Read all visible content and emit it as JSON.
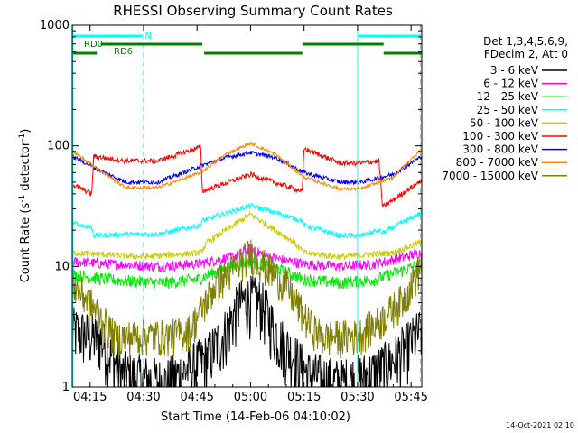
{
  "chart_data": {
    "type": "line",
    "title": "RHESSI Observing Summary Count Rates",
    "xlabel": "Start Time (14-Feb-06 04:10:02)",
    "ylabel_main": "Count Rate (s",
    "ylabel_sup1": "-1",
    "ylabel_mid": " detector",
    "ylabel_sup2": "-1",
    "ylabel_end": ")",
    "x_range_min": [
      250,
      348
    ],
    "y_scale": "log",
    "ylim": [
      1,
      1000
    ],
    "x_ticks": [
      {
        "min": 255,
        "label": "04:15"
      },
      {
        "min": 270,
        "label": "04:30"
      },
      {
        "min": 285,
        "label": "04:45"
      },
      {
        "min": 300,
        "label": "05:00"
      },
      {
        "min": 315,
        "label": "05:15"
      },
      {
        "min": 330,
        "label": "05:30"
      },
      {
        "min": 345,
        "label": "05:45"
      }
    ],
    "y_ticks": [
      {
        "value": 1,
        "label": "1"
      },
      {
        "value": 10,
        "label": "10"
      },
      {
        "value": 100,
        "label": "100"
      },
      {
        "value": 1000,
        "label": "1000"
      }
    ],
    "legend_header": [
      "Det 1,3,4,5,6,9,",
      "FDecim 2, Att 0"
    ],
    "legend_position": "right",
    "series": [
      {
        "name": "3 - 6 keV",
        "color": "#000000",
        "noise": 0.55,
        "points": [
          [
            250,
            3.0
          ],
          [
            258,
            2.5
          ],
          [
            264,
            1.3
          ],
          [
            276,
            1.1
          ],
          [
            287,
            1.7
          ],
          [
            292,
            2.6
          ],
          [
            297,
            5.0
          ],
          [
            300,
            5.5
          ],
          [
            303,
            5.0
          ],
          [
            308,
            2.6
          ],
          [
            313,
            1.7
          ],
          [
            316,
            1.3
          ],
          [
            325,
            1.1
          ],
          [
            334,
            1.3
          ],
          [
            340,
            1.7
          ],
          [
            348,
            3.0
          ]
        ]
      },
      {
        "name": "6 - 12 keV",
        "color": "#ff00ff",
        "noise": 0.1,
        "points": [
          [
            250,
            11
          ],
          [
            260,
            10.5
          ],
          [
            275,
            10
          ],
          [
            285,
            10.5
          ],
          [
            295,
            12
          ],
          [
            300,
            14
          ],
          [
            305,
            12
          ],
          [
            315,
            10.5
          ],
          [
            325,
            10
          ],
          [
            335,
            10.5
          ],
          [
            348,
            13
          ]
        ]
      },
      {
        "name": "12 - 25 keV",
        "color": "#00ee00",
        "noise": 0.12,
        "points": [
          [
            250,
            8.5
          ],
          [
            260,
            7.8
          ],
          [
            275,
            7.3
          ],
          [
            285,
            7.8
          ],
          [
            294,
            10
          ],
          [
            300,
            11
          ],
          [
            306,
            10
          ],
          [
            315,
            7.8
          ],
          [
            325,
            7.3
          ],
          [
            335,
            7.8
          ],
          [
            348,
            10.5
          ]
        ]
      },
      {
        "name": "25 - 50 keV",
        "color": "#00ffff",
        "noise": 0.05,
        "points": [
          [
            250,
            23
          ],
          [
            255.5,
            21
          ],
          [
            256,
            18
          ],
          [
            265,
            18.5
          ],
          [
            274,
            18.5
          ],
          [
            286,
            22
          ],
          [
            286.5,
            24
          ],
          [
            300,
            32
          ],
          [
            314.5,
            24
          ],
          [
            315,
            22
          ],
          [
            325,
            18
          ],
          [
            331,
            18
          ],
          [
            336,
            20
          ],
          [
            337,
            19
          ],
          [
            348,
            28
          ]
        ]
      },
      {
        "name": "50 - 100 keV",
        "color": "#cccc00",
        "noise": 0.06,
        "points": [
          [
            250,
            13
          ],
          [
            270,
            12
          ],
          [
            286,
            13
          ],
          [
            288,
            16
          ],
          [
            300,
            27
          ],
          [
            312,
            16
          ],
          [
            315,
            13
          ],
          [
            325,
            12
          ],
          [
            340,
            13
          ],
          [
            348,
            16
          ]
        ]
      },
      {
        "name": "100 - 300 keV",
        "color": "#ff0000",
        "noise": 0.05,
        "points": [
          [
            250,
            48
          ],
          [
            255.5,
            40
          ],
          [
            256,
            82
          ],
          [
            265,
            75
          ],
          [
            274,
            75
          ],
          [
            286,
            98
          ],
          [
            286.5,
            42
          ],
          [
            300,
            58
          ],
          [
            314.5,
            42
          ],
          [
            315,
            95
          ],
          [
            325,
            72
          ],
          [
            331,
            72
          ],
          [
            336,
            75
          ],
          [
            337,
            31
          ],
          [
            348,
            52
          ]
        ]
      },
      {
        "name": "300 - 800 keV",
        "color": "#0000ff",
        "noise": 0.04,
        "points": [
          [
            250,
            82
          ],
          [
            258,
            62
          ],
          [
            265,
            50
          ],
          [
            274,
            50
          ],
          [
            286,
            68
          ],
          [
            293,
            80
          ],
          [
            300,
            88
          ],
          [
            307,
            80
          ],
          [
            315,
            60
          ],
          [
            325,
            50
          ],
          [
            331,
            50
          ],
          [
            340,
            58
          ],
          [
            348,
            82
          ]
        ]
      },
      {
        "name": "800 - 7000 keV",
        "color": "#ff8800",
        "noise": 0.03,
        "points": [
          [
            250,
            90
          ],
          [
            258,
            62
          ],
          [
            265,
            45
          ],
          [
            274,
            45
          ],
          [
            286,
            60
          ],
          [
            293,
            85
          ],
          [
            300,
            105
          ],
          [
            307,
            85
          ],
          [
            315,
            55
          ],
          [
            325,
            44
          ],
          [
            331,
            44
          ],
          [
            340,
            55
          ],
          [
            348,
            95
          ]
        ]
      },
      {
        "name": "7000 - 15000 keV",
        "color": "#808000",
        "noise": 0.35,
        "points": [
          [
            250,
            7.5
          ],
          [
            257,
            4.2
          ],
          [
            262,
            2.6
          ],
          [
            270,
            2.7
          ],
          [
            278,
            2.7
          ],
          [
            283,
            3.0
          ],
          [
            290,
            7.0
          ],
          [
            300,
            13
          ],
          [
            310,
            7.0
          ],
          [
            316,
            3.5
          ],
          [
            320,
            2.6
          ],
          [
            330,
            2.7
          ],
          [
            336,
            3.5
          ],
          [
            343,
            5.5
          ],
          [
            348,
            10.5
          ]
        ]
      }
    ],
    "vlines_solid": [
      250.2,
      330
    ],
    "vlines_dashed": [
      270,
      347.6
    ],
    "annotation_bars": [
      {
        "label": "N",
        "color": "#00ffff",
        "row": 0,
        "segments": [
          [
            250.3,
            269.6
          ],
          [
            330.2,
            347.6
          ]
        ]
      },
      {
        "label": "RD0",
        "color": "#008000",
        "row": 1,
        "segments": [
          [
            258,
            286.5
          ],
          [
            314.5,
            337.3
          ]
        ]
      },
      {
        "label": "RD6",
        "color": "#008000",
        "row": 2,
        "segments": [
          [
            250.3,
            256.9
          ],
          [
            287,
            314.5
          ],
          [
            337.3,
            348
          ]
        ]
      }
    ],
    "timestamp": "14-Oct-2021 02:10"
  }
}
